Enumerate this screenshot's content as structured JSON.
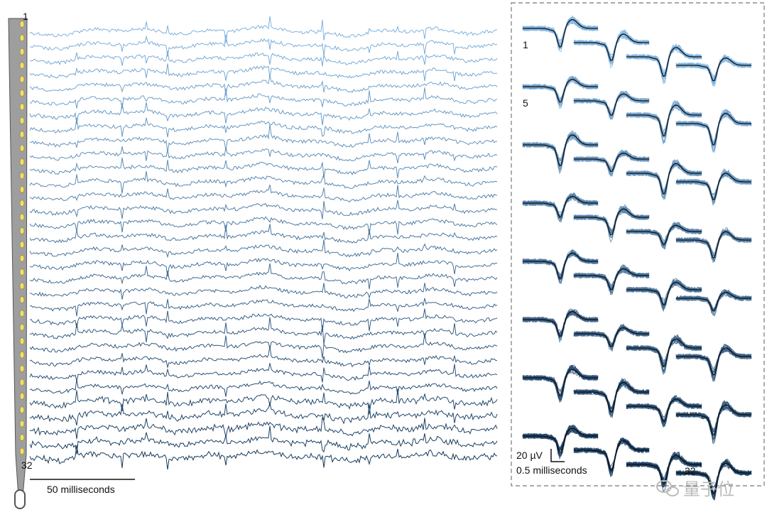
{
  "chart_data": [
    {
      "type": "line",
      "title": "",
      "channel_count": 32,
      "channel_labels": {
        "first": "1",
        "last": "32"
      },
      "scale_bar_label": "50 milliseconds",
      "color_gradient": [
        "#7fb3e0",
        "#173a5c"
      ]
    },
    {
      "type": "line",
      "title": "",
      "panel_count": 32,
      "channel_labels": {
        "first": "1",
        "fifth": "5",
        "last": "32"
      },
      "amplitude_scale_label": "20 µV",
      "time_scale_label": "0.5 milliseconds",
      "individual_color_gradient": [
        "#7fb3e0",
        "#1b3f63"
      ],
      "mean_color": "#111111"
    }
  ],
  "probe": {
    "color": "#9e9e9e",
    "contact_color": "#f2de6d",
    "contact_count": 32
  },
  "watermark": {
    "text": "量子位"
  }
}
